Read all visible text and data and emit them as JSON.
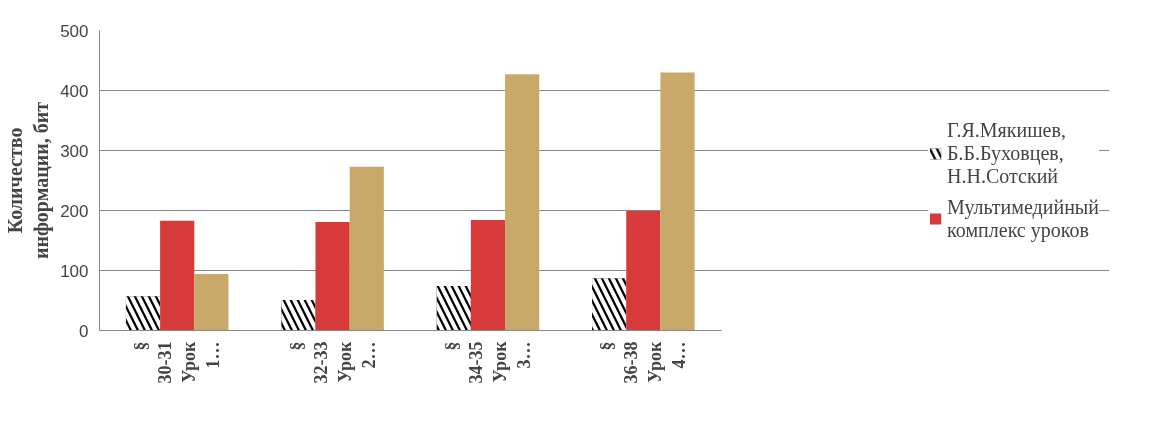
{
  "chart_data": {
    "type": "bar",
    "ylabel": "Количество информации, бит",
    "categories": [
      "§ 30-31 Урок 1…",
      "§ 32-33 Урок 2…",
      "§ 34-35 Урок 3…",
      "§ 36-38 Урок 4…"
    ],
    "series": [
      {
        "name": "Г.Я.Мякишев, Б.Б.Буховцев, Н.Н.Сотский",
        "color": "#000000",
        "values": [
          57,
          51,
          74,
          87
        ]
      },
      {
        "name": "Мультимедийный комплекс уроков",
        "color": "#d63a3a",
        "values": [
          183,
          181,
          184,
          199
        ]
      },
      {
        "color": "#c9a96a",
        "values": [
          94,
          273,
          427,
          430
        ]
      }
    ],
    "ylim": [
      0,
      500
    ],
    "yticks": [
      0,
      100,
      200,
      300,
      400,
      500
    ],
    "grid": "y",
    "legend": "right"
  }
}
